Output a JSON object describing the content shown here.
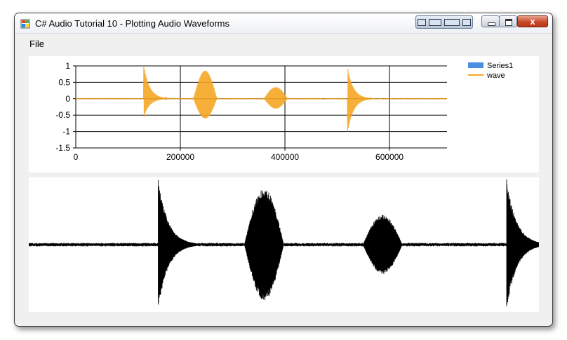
{
  "window": {
    "title": "C# Audio Tutorial 10 - Plotting Audio Waveforms",
    "close_glyph": "x",
    "controls": [
      "minimize-icon",
      "maximize-icon",
      "close-icon"
    ]
  },
  "menu": {
    "items": [
      {
        "label": "File"
      }
    ]
  },
  "colors": {
    "wave": "#f5a623",
    "series1": "#4a90e2",
    "waveform": "#000000"
  },
  "chart_data": {
    "type": "line",
    "xlim": [
      0,
      710000
    ],
    "ylim": [
      -1.5,
      1
    ],
    "x_ticks": [
      0,
      200000,
      400000,
      600000
    ],
    "x_tick_labels": [
      "0",
      "200000",
      "400000",
      "600000"
    ],
    "y_ticks": [
      1,
      0.5,
      0,
      -0.5,
      -1,
      -1.5
    ],
    "y_tick_labels": [
      "1",
      "0.5",
      "0",
      "-0.5",
      "-1",
      "-1.5"
    ],
    "grid": true,
    "legend_position": "top-right",
    "legend": [
      {
        "name": "Series1",
        "style": "bar",
        "color": "#4a90e2"
      },
      {
        "name": "wave",
        "style": "line",
        "color": "#f5a623"
      }
    ],
    "series": [
      {
        "name": "wave",
        "events": [
          {
            "start": 130000,
            "peak": 1.0,
            "trough": -0.55,
            "shape": "decay"
          },
          {
            "start": 225000,
            "peak": 0.85,
            "trough": -0.6,
            "shape": "burst"
          },
          {
            "start": 360000,
            "peak": 0.35,
            "trough": -0.3,
            "shape": "burst"
          },
          {
            "start": 520000,
            "peak": 0.9,
            "trough": -1.0,
            "shape": "decay"
          }
        ]
      },
      {
        "name": "Series1",
        "events": []
      }
    ]
  },
  "waveform_view": {
    "events": [
      {
        "start": 180000,
        "amp": 1.0,
        "shape": "decay"
      },
      {
        "start": 300000,
        "amp": 0.85,
        "shape": "burst"
      },
      {
        "start": 465000,
        "amp": 0.45,
        "shape": "burst"
      },
      {
        "start": 665000,
        "amp": 1.0,
        "shape": "decay"
      }
    ]
  }
}
